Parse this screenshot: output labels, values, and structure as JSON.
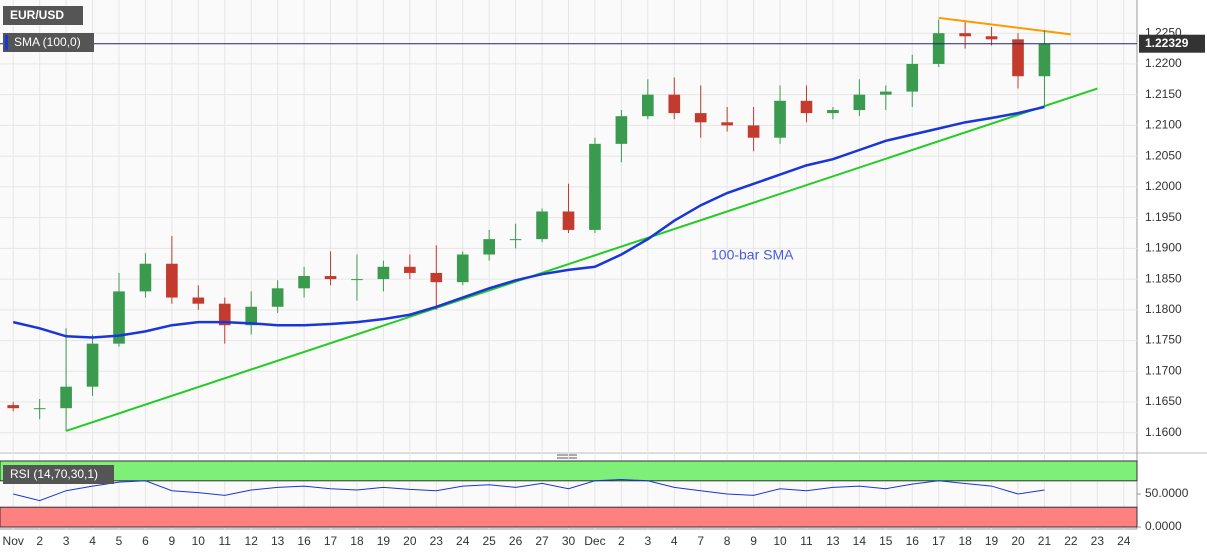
{
  "chart_data": [
    {
      "type": "candlestick",
      "title": "EUR/USD",
      "categories": [
        "Nov",
        "2",
        "3",
        "4",
        "5",
        "6",
        "9",
        "10",
        "11",
        "12",
        "13",
        "16",
        "17",
        "18",
        "19",
        "20",
        "23",
        "24",
        "25",
        "26",
        "27",
        "30",
        "Dec",
        "2",
        "3",
        "4",
        "7",
        "8",
        "9",
        "10",
        "11",
        "13",
        "14",
        "15",
        "16",
        "17",
        "18",
        "19",
        "20",
        "21",
        "22",
        "23",
        "24"
      ],
      "open": [
        1.1645,
        1.164,
        1.164,
        1.1675,
        1.1745,
        1.183,
        1.1875,
        1.182,
        1.181,
        1.1775,
        1.1805,
        1.1835,
        1.1855,
        1.185,
        1.185,
        1.187,
        1.186,
        1.1845,
        1.189,
        1.1915,
        1.1915,
        1.196,
        1.193,
        1.207,
        1.2115,
        1.215,
        1.212,
        1.2105,
        1.21,
        1.208,
        1.214,
        1.212,
        1.2125,
        1.215,
        1.2155,
        1.22,
        1.225,
        1.2245,
        1.224,
        1.218,
        null,
        null,
        null
      ],
      "high": [
        1.165,
        1.1655,
        1.177,
        1.176,
        1.186,
        1.1892,
        1.192,
        1.184,
        1.182,
        1.183,
        1.1848,
        1.187,
        1.1895,
        1.189,
        1.188,
        1.189,
        1.1905,
        1.1895,
        1.193,
        1.194,
        1.1965,
        1.2005,
        1.208,
        1.2125,
        1.2175,
        1.2178,
        1.2165,
        1.213,
        1.213,
        1.2165,
        1.2165,
        1.213,
        1.2175,
        1.2165,
        1.2215,
        1.2272,
        1.2268,
        1.226,
        1.225,
        1.2255,
        null,
        null,
        null
      ],
      "low": [
        1.1635,
        1.1622,
        1.1603,
        1.166,
        1.174,
        1.182,
        1.181,
        1.18,
        1.1745,
        1.176,
        1.1795,
        1.182,
        1.184,
        1.1815,
        1.183,
        1.185,
        1.18,
        1.184,
        1.188,
        1.19,
        1.191,
        1.1925,
        1.1925,
        1.204,
        1.211,
        1.211,
        1.208,
        1.209,
        1.2058,
        1.207,
        1.2105,
        1.211,
        1.2115,
        1.2125,
        1.213,
        1.2195,
        1.2225,
        1.223,
        1.216,
        1.213,
        null,
        null,
        null
      ],
      "close": [
        1.164,
        1.164,
        1.1675,
        1.1745,
        1.183,
        1.1875,
        1.182,
        1.181,
        1.1775,
        1.1805,
        1.1835,
        1.1855,
        1.185,
        1.185,
        1.187,
        1.186,
        1.1845,
        1.189,
        1.1915,
        1.1915,
        1.196,
        1.193,
        1.207,
        1.2115,
        1.215,
        1.212,
        1.2105,
        1.21,
        1.208,
        1.214,
        1.212,
        1.2125,
        1.215,
        1.2155,
        1.22,
        1.225,
        1.2245,
        1.224,
        1.218,
        1.2233,
        null,
        null,
        null
      ],
      "up_color": "#3a9a4e",
      "down_color": "#c23b2e",
      "series": [
        {
          "name": "SMA (100,0)",
          "color": "#1a35d8",
          "values": [
            1.178,
            1.177,
            1.1757,
            1.1755,
            1.1758,
            1.1765,
            1.1775,
            1.178,
            1.178,
            1.1778,
            1.1775,
            1.1775,
            1.1777,
            1.178,
            1.1785,
            1.1792,
            1.1805,
            1.182,
            1.1835,
            1.1848,
            1.1858,
            1.1865,
            1.187,
            1.189,
            1.1915,
            1.1945,
            1.197,
            1.199,
            1.2005,
            1.202,
            1.2035,
            1.2045,
            1.206,
            1.2075,
            1.2085,
            1.2095,
            1.2105,
            1.2112,
            1.212,
            1.213,
            null,
            null,
            null
          ]
        }
      ],
      "annotations": [
        "100-bar SMA"
      ],
      "trendlines": [
        {
          "color": "#22cc22",
          "values": [
            null,
            null,
            1.1603,
            null,
            null,
            null,
            null,
            null,
            null,
            null,
            null,
            null,
            null,
            null,
            null,
            null,
            null,
            null,
            null,
            null,
            null,
            null,
            null,
            null,
            null,
            null,
            null,
            null,
            null,
            null,
            null,
            null,
            null,
            null,
            null,
            null,
            null,
            null,
            null,
            null,
            null,
            1.216,
            null
          ]
        },
        {
          "color": "#ff9900",
          "values": [
            null,
            null,
            null,
            null,
            null,
            null,
            null,
            null,
            null,
            null,
            null,
            null,
            null,
            null,
            null,
            null,
            null,
            null,
            null,
            null,
            null,
            null,
            null,
            null,
            null,
            null,
            null,
            null,
            null,
            null,
            null,
            null,
            null,
            null,
            null,
            1.2275,
            null,
            null,
            null,
            null,
            1.2248,
            null,
            null
          ]
        }
      ],
      "last_price": 1.22329,
      "ylim": [
        1.1572,
        1.2304
      ],
      "yticks": [
        {
          "value": 1.16,
          "label": "1.1600"
        },
        {
          "value": 1.165,
          "label": "1.1650"
        },
        {
          "value": 1.17,
          "label": "1.1700"
        },
        {
          "value": 1.175,
          "label": "1.1750"
        },
        {
          "value": 1.18,
          "label": "1.1800"
        },
        {
          "value": 1.185,
          "label": "1.1850"
        },
        {
          "value": 1.19,
          "label": "1.1900"
        },
        {
          "value": 1.195,
          "label": "1.1950"
        },
        {
          "value": 1.2,
          "label": "1.2000"
        },
        {
          "value": 1.205,
          "label": "1.2050"
        },
        {
          "value": 1.21,
          "label": "1.2100"
        },
        {
          "value": 1.215,
          "label": "1.2150"
        },
        {
          "value": 1.22,
          "label": "1.2200"
        },
        {
          "value": 1.225,
          "label": "1.2250"
        }
      ],
      "grid": true
    },
    {
      "type": "line",
      "title": "RSI (14,70,30,1)",
      "series": [
        {
          "name": "RSI",
          "color": "#1a35d8",
          "values": [
            50,
            40,
            55,
            62,
            68,
            70,
            55,
            52,
            48,
            56,
            60,
            62,
            58,
            56,
            60,
            57,
            55,
            62,
            64,
            60,
            66,
            58,
            70,
            72,
            70,
            60,
            55,
            50,
            48,
            58,
            55,
            60,
            62,
            58,
            65,
            70,
            66,
            62,
            50,
            56,
            null,
            null,
            null
          ]
        }
      ],
      "levels": [
        70,
        30
      ],
      "upper_color": "#7ef07a",
      "lower_color": "#ff8080",
      "ylim": [
        0,
        100
      ],
      "yticks": [
        {
          "value": 50,
          "label": "50.0000"
        },
        {
          "value": 0,
          "label": "0.0000"
        }
      ]
    }
  ]
}
